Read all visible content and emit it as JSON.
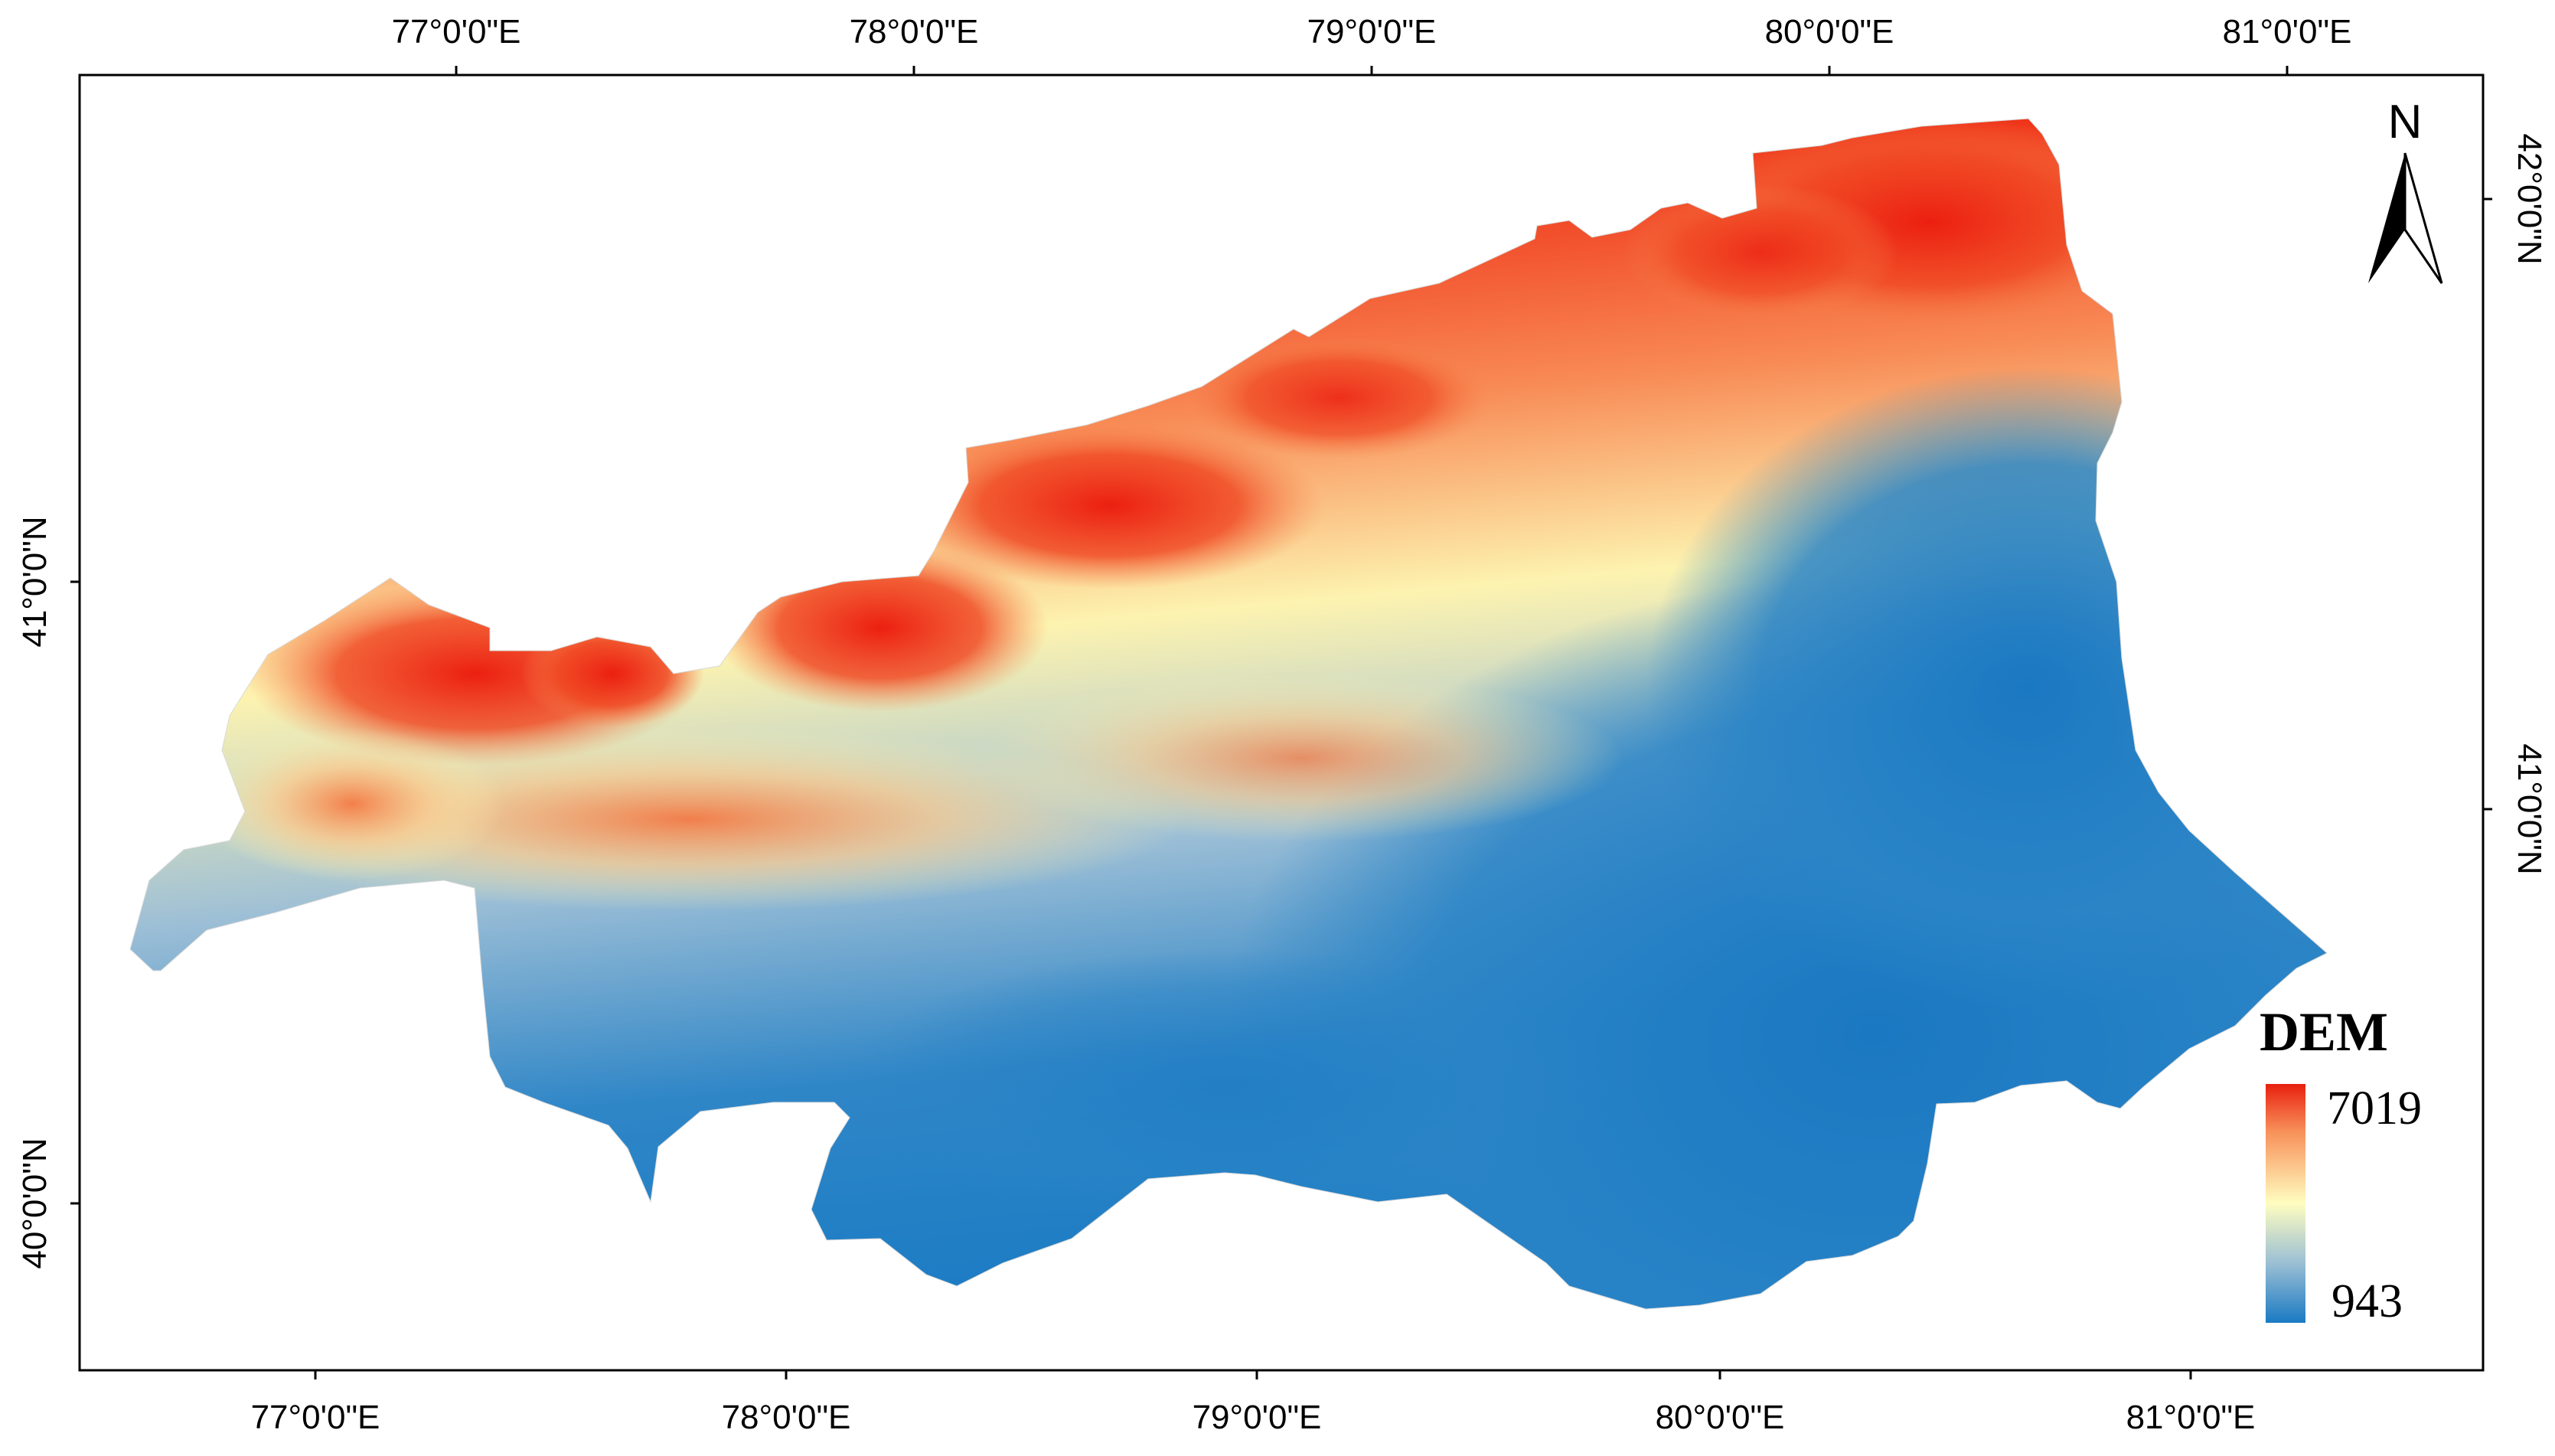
{
  "map": {
    "top_ticks": [
      "77°0'0\"E",
      "78°0'0\"E",
      "79°0'0\"E",
      "80°0'0\"E",
      "81°0'0\"E"
    ],
    "bottom_ticks": [
      "77°0'0\"E",
      "78°0'0\"E",
      "79°0'0\"E",
      "80°0'0\"E",
      "81°0'0\"E"
    ],
    "left_ticks": [
      "41°0'0\"N",
      "40°0'0\"N"
    ],
    "right_ticks": [
      "42°0'0\"N",
      "41°0'0\"N"
    ],
    "north_arrow": {
      "label": "N",
      "icon": "north-arrow-icon"
    },
    "legend": {
      "title": "DEM",
      "max_label": "7019",
      "min_label": "943",
      "colors": [
        "#e8200f",
        "#f8915a",
        "#fffdc0",
        "#9bbfd4",
        "#1a7ac3"
      ]
    },
    "colors": {
      "high": "#ee2a12",
      "mid_high": "#f9a26a",
      "mid": "#fdf6b4",
      "mid_low": "#b7cfdd",
      "low": "#1c7cc4"
    }
  }
}
